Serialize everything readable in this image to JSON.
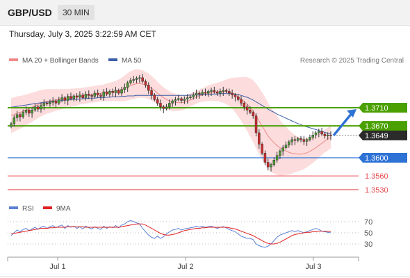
{
  "header": {
    "pair": "GBP/USD",
    "timeframe": "30 MIN",
    "datetime": "Thursday, July 3, 2025 3:22:59 AM CET"
  },
  "credit": "Research © 2025 Trading Central",
  "colors": {
    "green": "#4aa000",
    "blue": "#2f72d6",
    "red": "#e5484d",
    "black_label": "#2b2b2b",
    "candle_up": "#4a9a30",
    "candle_down": "#cc2a2a",
    "bollinger_fill": "#fbd6d6",
    "ma20": "#f08a8a",
    "ma50": "#3a5fa8",
    "rsi": "#5a7fd6",
    "rsi_ma": "#e02020"
  },
  "chart_data": [
    {
      "type": "candlestick",
      "legend": [
        {
          "name": "MA 20 + Bollinger Bands",
          "color": "#f08a8a"
        },
        {
          "name": "MA 50",
          "color": "#3a5fa8"
        }
      ],
      "ylim": [
        1.3515,
        1.3765
      ],
      "x_ticks": [
        "Jul 1",
        "Jul 2",
        "Jul 3"
      ],
      "levels": [
        {
          "value": 1.371,
          "label": "1.3710",
          "style": "green-line"
        },
        {
          "value": 1.367,
          "label": "1.3670",
          "style": "green-line"
        },
        {
          "value": 1.3649,
          "label": "1.3649",
          "style": "current-price"
        },
        {
          "value": 1.36,
          "label": "1.3600",
          "style": "blue-line"
        },
        {
          "value": 1.356,
          "label": "1.3560",
          "style": "red-line"
        },
        {
          "value": 1.353,
          "label": "1.3530",
          "style": "red-line"
        }
      ],
      "current_price": 1.3649,
      "forecast": {
        "direction": "up",
        "from": 1.3649,
        "to": 1.371
      },
      "closes": [
        1.3675,
        1.3688,
        1.3695,
        1.369,
        1.37,
        1.3705,
        1.3698,
        1.3705,
        1.3712,
        1.3707,
        1.3715,
        1.372,
        1.3718,
        1.3722,
        1.3725,
        1.372,
        1.3728,
        1.3732,
        1.3726,
        1.3735,
        1.373,
        1.3736,
        1.3733,
        1.3738,
        1.3732,
        1.374,
        1.3737,
        1.3735,
        1.3742,
        1.3738,
        1.3735,
        1.3745,
        1.374,
        1.3746,
        1.3743,
        1.3748,
        1.3742,
        1.375,
        1.3755,
        1.3765,
        1.377,
        1.3772,
        1.3775,
        1.3776,
        1.3768,
        1.376,
        1.3748,
        1.3738,
        1.3728,
        1.372,
        1.3712,
        1.3708,
        1.3712,
        1.372,
        1.3725,
        1.3728,
        1.373,
        1.3726,
        1.3729,
        1.3732,
        1.3734,
        1.3738,
        1.3742,
        1.374,
        1.3744,
        1.3742,
        1.3746,
        1.3748,
        1.3745,
        1.3742,
        1.3746,
        1.3748,
        1.3746,
        1.3742,
        1.3738,
        1.3734,
        1.3728,
        1.372,
        1.3712,
        1.3705,
        1.37,
        1.3692,
        1.3655,
        1.363,
        1.361,
        1.359,
        1.358,
        1.3585,
        1.3595,
        1.3605,
        1.3615,
        1.3622,
        1.3628,
        1.3635,
        1.364,
        1.3638,
        1.3642,
        1.364,
        1.3636,
        1.364,
        1.3645,
        1.365,
        1.3655,
        1.3658,
        1.3652,
        1.3648,
        1.365,
        1.3649
      ],
      "ma20": [
        1.3693,
        1.3695,
        1.3698,
        1.37,
        1.3702,
        1.3705,
        1.3708,
        1.3711,
        1.3714,
        1.3717,
        1.372,
        1.3722,
        1.3724,
        1.3725,
        1.3726,
        1.3727,
        1.3728,
        1.3729,
        1.373,
        1.3731,
        1.3732,
        1.3733,
        1.3734,
        1.3735,
        1.3736,
        1.3737,
        1.3738,
        1.3739,
        1.374,
        1.3741,
        1.3742,
        1.3743,
        1.3744,
        1.3745,
        1.3746,
        1.3747,
        1.3748,
        1.375,
        1.3753,
        1.3756,
        1.3759,
        1.3761,
        1.3763,
        1.3763,
        1.3762,
        1.376,
        1.3757,
        1.3753,
        1.3748,
        1.3742,
        1.3737,
        1.3732,
        1.3728,
        1.3725,
        1.3723,
        1.3722,
        1.3721,
        1.3721,
        1.3722,
        1.3724,
        1.3727,
        1.373,
        1.3733,
        1.3736,
        1.3738,
        1.374,
        1.3742,
        1.3743,
        1.3744,
        1.3745,
        1.3745,
        1.3745,
        1.3745,
        1.3744,
        1.3742,
        1.3738,
        1.3734,
        1.3729,
        1.3724,
        1.3718,
        1.3711,
        1.3703,
        1.3692,
        1.3681,
        1.367,
        1.3659,
        1.3648,
        1.364,
        1.3633,
        1.3627,
        1.3622,
        1.3618,
        1.3615,
        1.3612,
        1.361,
        1.3609,
        1.3608,
        1.3608,
        1.3609,
        1.3611,
        1.3614,
        1.3618,
        1.3622,
        1.3627,
        1.3632,
        1.3637,
        1.3641,
        1.3645
      ],
      "bb_width": [
        0.0038,
        0.0038,
        0.0037,
        0.0036,
        0.0035,
        0.0034,
        0.0033,
        0.0032,
        0.0031,
        0.003,
        0.0029,
        0.0028,
        0.0027,
        0.0026,
        0.0025,
        0.0024,
        0.0023,
        0.0022,
        0.0021,
        0.002,
        0.002,
        0.0019,
        0.0019,
        0.0018,
        0.0018,
        0.0018,
        0.0018,
        0.0018,
        0.0018,
        0.0018,
        0.0018,
        0.0018,
        0.0019,
        0.002,
        0.0021,
        0.0022,
        0.0024,
        0.0026,
        0.0028,
        0.003,
        0.0031,
        0.0032,
        0.0032,
        0.0031,
        0.003,
        0.0029,
        0.0028,
        0.0027,
        0.0026,
        0.0025,
        0.0024,
        0.0023,
        0.0022,
        0.0021,
        0.002,
        0.0019,
        0.0018,
        0.0017,
        0.0016,
        0.0015,
        0.0014,
        0.0014,
        0.0014,
        0.0014,
        0.0015,
        0.0016,
        0.0017,
        0.0018,
        0.0019,
        0.002,
        0.0022,
        0.0024,
        0.0027,
        0.003,
        0.0034,
        0.0038,
        0.0043,
        0.0048,
        0.0054,
        0.0059,
        0.0064,
        0.0068,
        0.0071,
        0.0073,
        0.0074,
        0.0074,
        0.0073,
        0.0071,
        0.0068,
        0.0065,
        0.0061,
        0.0057,
        0.0053,
        0.0049,
        0.0045,
        0.0041,
        0.0038,
        0.0036,
        0.0034,
        0.0032,
        0.003,
        0.0029,
        0.0028,
        0.0027,
        0.0026,
        0.0025,
        0.0025,
        0.0025
      ],
      "ma50": [
        1.3711,
        1.3712,
        1.3713,
        1.3714,
        1.3715,
        1.3716,
        1.3717,
        1.3718,
        1.3719,
        1.372,
        1.3721,
        1.3722,
        1.3722,
        1.3723,
        1.3724,
        1.3725,
        1.3725,
        1.3726,
        1.3727,
        1.3727,
        1.3728,
        1.3728,
        1.3729,
        1.3729,
        1.373,
        1.373,
        1.3731,
        1.3731,
        1.3731,
        1.3732,
        1.3732,
        1.3732,
        1.3733,
        1.3733,
        1.3734,
        1.3734,
        1.3734,
        1.3735,
        1.3735,
        1.3736,
        1.3736,
        1.3736,
        1.3737,
        1.3737,
        1.3737,
        1.3737,
        1.3737,
        1.3737,
        1.3737,
        1.3737,
        1.3737,
        1.3737,
        1.3737,
        1.3737,
        1.3737,
        1.3737,
        1.3737,
        1.3737,
        1.3737,
        1.3737,
        1.3738,
        1.3738,
        1.3738,
        1.3738,
        1.3739,
        1.3739,
        1.3739,
        1.374,
        1.374,
        1.374,
        1.3741,
        1.3741,
        1.3741,
        1.3741,
        1.3741,
        1.374,
        1.3739,
        1.3737,
        1.3735,
        1.3733,
        1.373,
        1.3727,
        1.3723,
        1.3719,
        1.3715,
        1.3711,
        1.3707,
        1.3703,
        1.37,
        1.3696,
        1.3693,
        1.369,
        1.3687,
        1.3684,
        1.3681,
        1.3678,
        1.3675,
        1.3673,
        1.367,
        1.3668,
        1.3666,
        1.3664,
        1.3662,
        1.366,
        1.3658,
        1.3656,
        1.3654,
        1.3652
      ]
    },
    {
      "type": "line",
      "legend": [
        {
          "name": "RSI",
          "color": "#5a7fd6"
        },
        {
          "name": "9MA",
          "color": "#e02020"
        }
      ],
      "ylim": [
        20,
        80
      ],
      "y_ticks": [
        70,
        50,
        30
      ],
      "rsi": [
        45,
        50,
        55,
        52,
        56,
        58,
        54,
        57,
        60,
        56,
        60,
        62,
        58,
        61,
        63,
        59,
        62,
        64,
        58,
        63,
        60,
        62,
        58,
        61,
        57,
        62,
        59,
        57,
        61,
        58,
        56,
        62,
        58,
        61,
        59,
        63,
        59,
        64,
        66,
        70,
        72,
        70,
        68,
        66,
        58,
        52,
        46,
        42,
        40,
        44,
        40,
        43,
        48,
        52,
        55,
        56,
        58,
        55,
        57,
        58,
        59,
        60,
        62,
        60,
        62,
        60,
        61,
        62,
        60,
        58,
        60,
        61,
        59,
        56,
        54,
        52,
        48,
        44,
        42,
        40,
        40,
        38,
        30,
        27,
        25,
        24,
        26,
        30,
        36,
        42,
        46,
        48,
        50,
        52,
        54,
        52,
        54,
        52,
        50,
        52,
        54,
        56,
        58,
        56,
        53,
        52,
        51,
        50
      ],
      "rsi_ma": [
        48,
        49,
        50,
        51,
        52,
        53,
        54,
        55,
        56,
        57,
        58,
        58,
        58,
        59,
        59,
        60,
        60,
        60,
        60,
        61,
        61,
        61,
        61,
        61,
        61,
        60,
        60,
        60,
        60,
        60,
        60,
        60,
        60,
        60,
        60,
        60,
        60,
        61,
        62,
        63,
        64,
        65,
        66,
        66,
        66,
        64,
        61,
        58,
        55,
        52,
        49,
        47,
        46,
        46,
        47,
        48,
        50,
        52,
        54,
        55,
        56,
        57,
        58,
        58,
        59,
        59,
        60,
        60,
        60,
        60,
        60,
        60,
        60,
        59,
        58,
        57,
        55,
        53,
        51,
        49,
        47,
        45,
        42,
        39,
        36,
        33,
        31,
        30,
        30,
        31,
        33,
        36,
        39,
        42,
        45,
        47,
        48,
        49,
        50,
        51,
        51,
        52,
        52,
        53,
        53,
        53,
        53,
        52
      ]
    }
  ]
}
